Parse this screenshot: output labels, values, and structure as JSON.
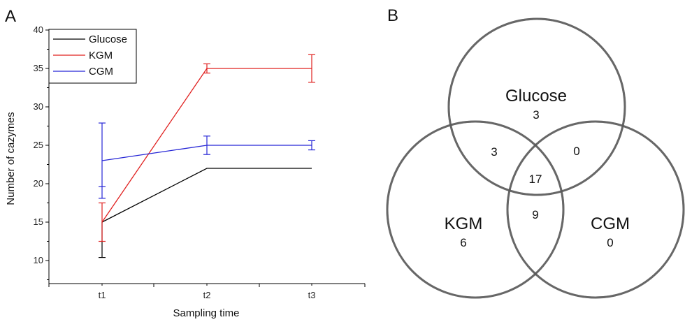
{
  "panel_a": {
    "letter": "A"
  },
  "panel_b": {
    "letter": "B"
  },
  "chart_data": [
    {
      "type": "line",
      "xlabel": "Sampling time",
      "ylabel": "Number of cazymes",
      "categories": [
        "t1",
        "t2",
        "t3"
      ],
      "ylim": [
        7,
        40
      ],
      "yticks": [
        10,
        15,
        20,
        25,
        30,
        35,
        40
      ],
      "legend_position": "top-left",
      "series": [
        {
          "name": "Glucose",
          "color": "#000000",
          "values": [
            15,
            22,
            22
          ],
          "error_low": [
            10.4,
            null,
            null
          ],
          "error_high": [
            null,
            null,
            null
          ]
        },
        {
          "name": "KGM",
          "color": "#e0201f",
          "values": [
            15,
            35,
            35
          ],
          "error_low": [
            12.5,
            34.4,
            33.2
          ],
          "error_high": [
            17.5,
            35.6,
            36.8
          ]
        },
        {
          "name": "CGM",
          "color": "#2626d6",
          "values": [
            23,
            25,
            25
          ],
          "error_low": [
            18.1,
            23.8,
            24.4
          ],
          "error_high": [
            27.9,
            26.2,
            25.6
          ]
        }
      ],
      "extra_marks": [
        {
          "category": "t1",
          "value": 19.6,
          "color": "#2626d6"
        }
      ]
    },
    {
      "type": "venn",
      "sets": [
        "Glucose",
        "KGM",
        "CGM"
      ],
      "regions": {
        "glucose_only": "3",
        "kgm_only": "6",
        "cgm_only": "0",
        "glucose_kgm": "3",
        "glucose_cgm": "0",
        "kgm_cgm": "9",
        "all": "17"
      }
    }
  ]
}
